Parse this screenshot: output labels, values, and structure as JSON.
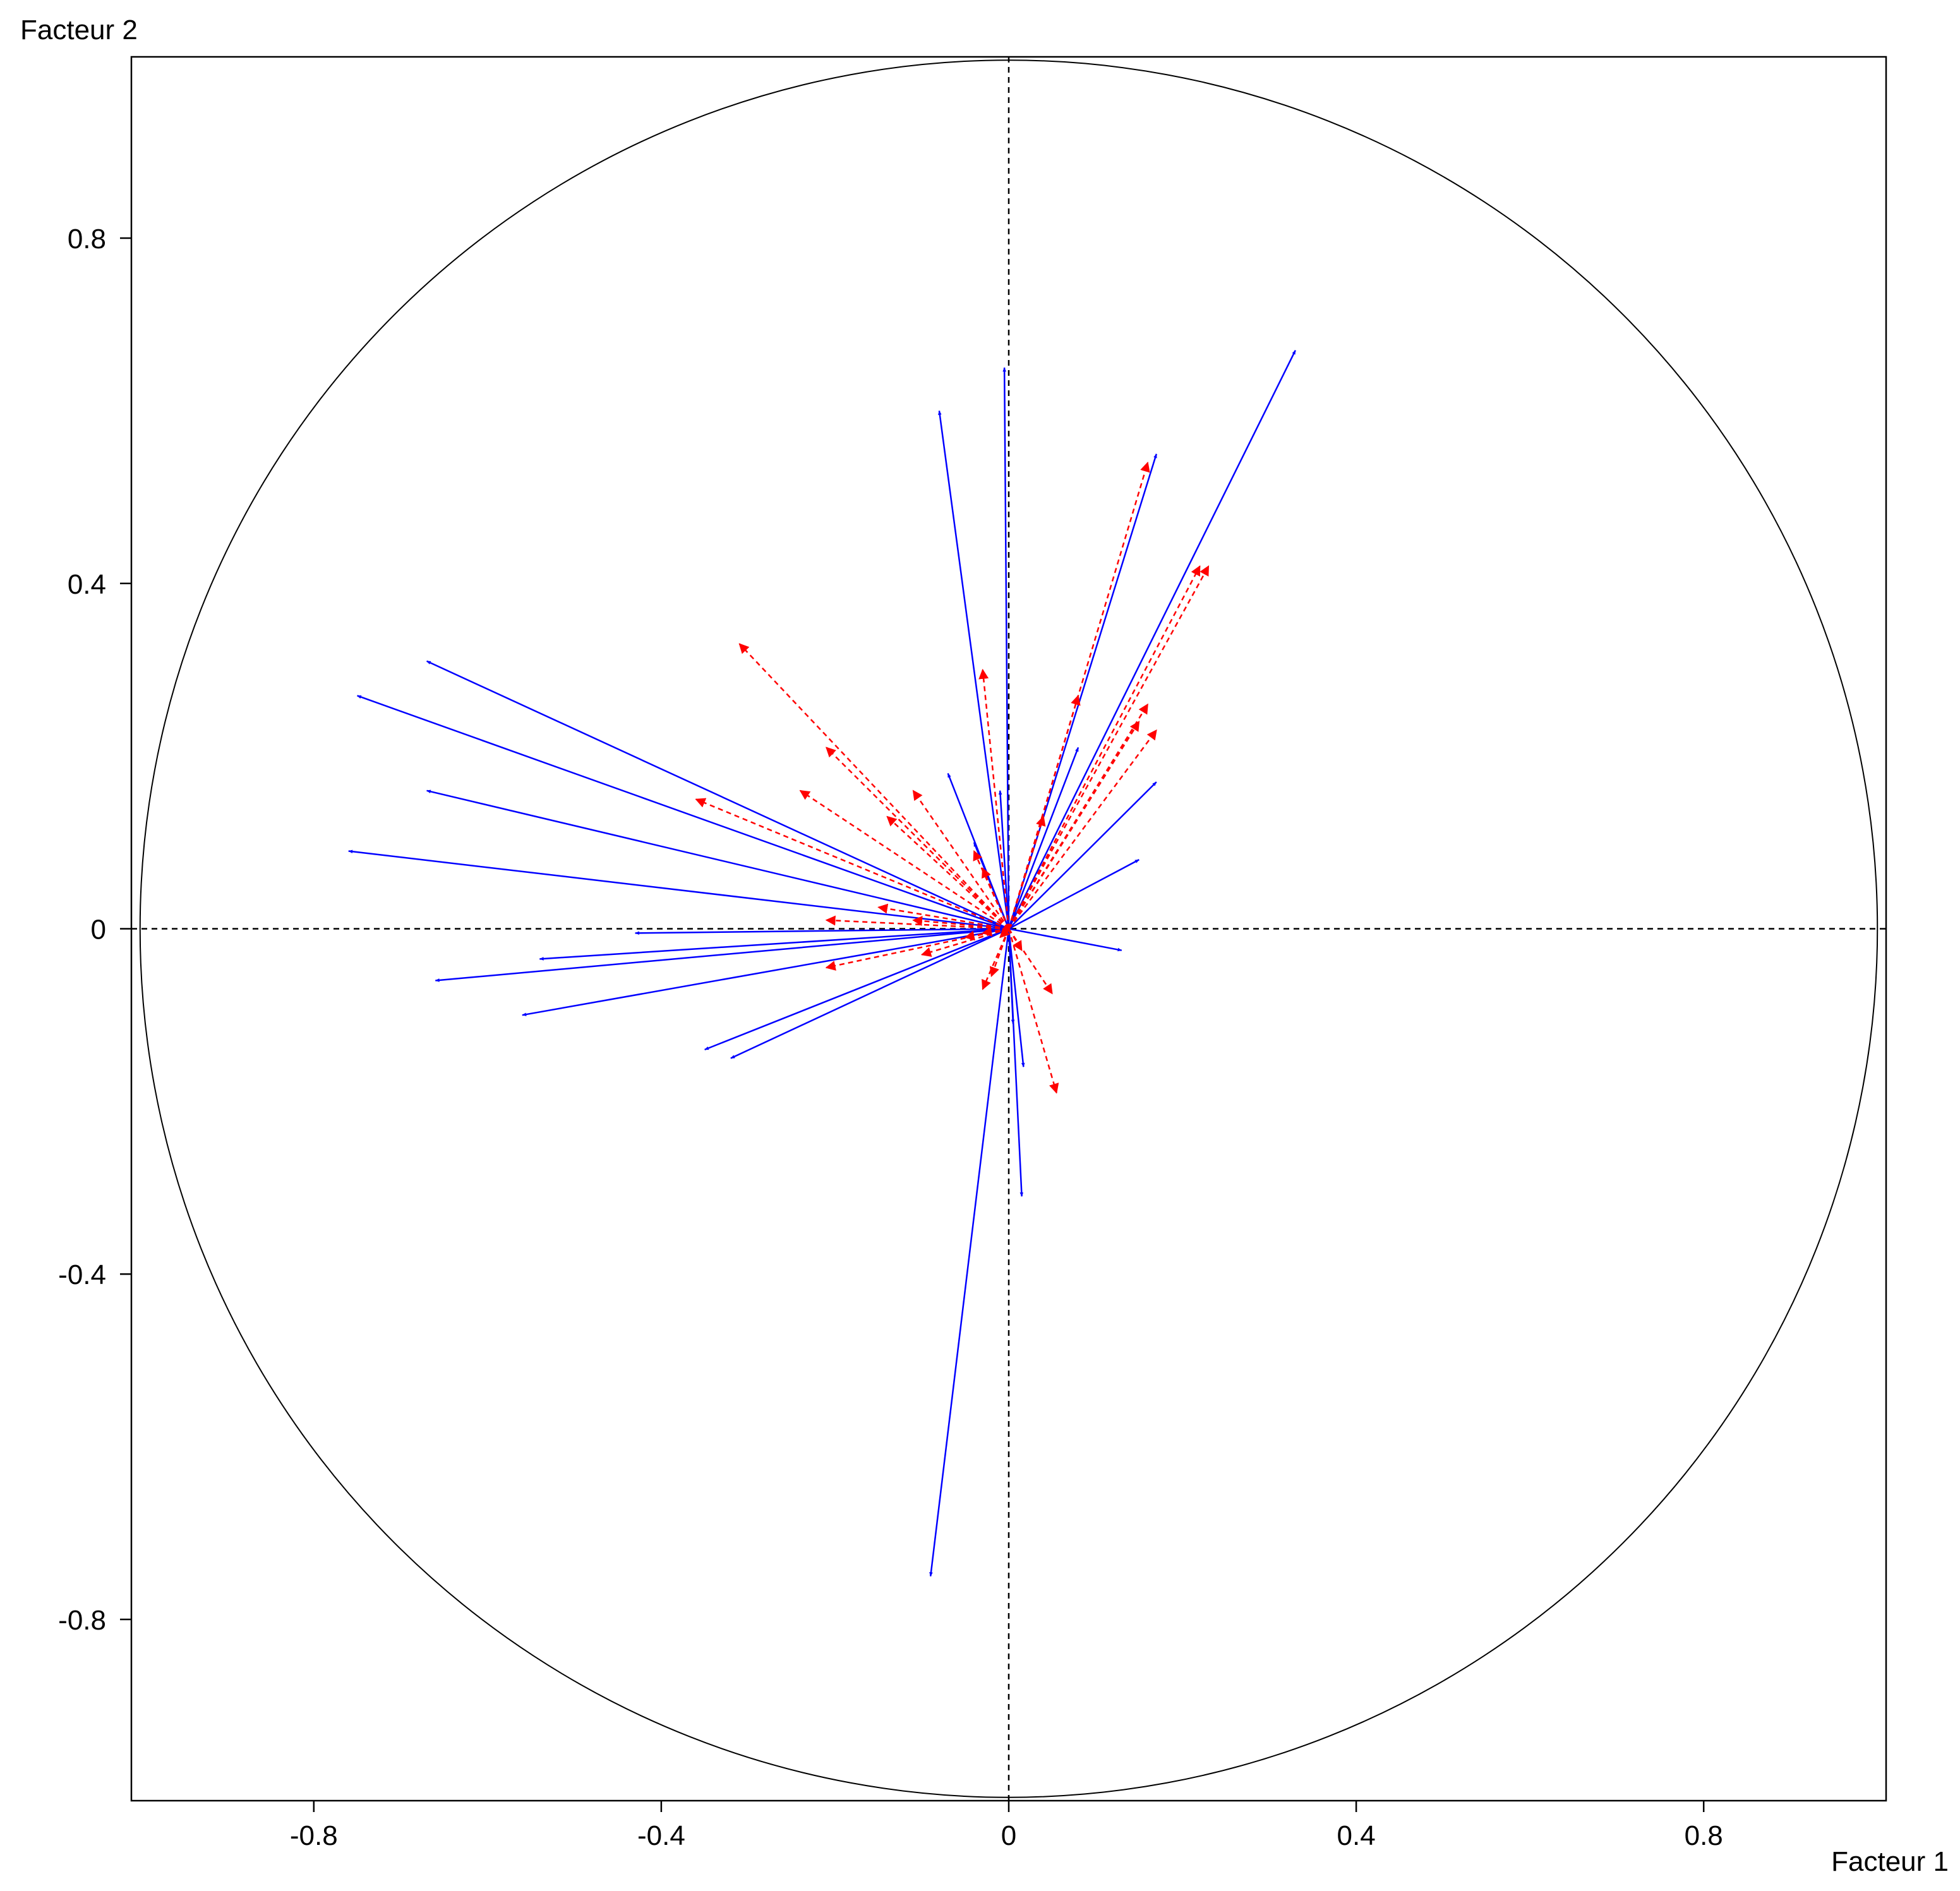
{
  "chart_data": {
    "type": "scatter",
    "subtype": "correlation-circle",
    "title": "",
    "xlabel": "Facteur 1",
    "ylabel": "Facteur 2",
    "xlim": [
      -1.01,
      1.01
    ],
    "ylim": [
      -1.01,
      1.01
    ],
    "x_ticks": [
      -0.8,
      -0.4,
      0,
      0.4,
      0.8
    ],
    "y_ticks": [
      0.8,
      0.4,
      0,
      -0.4,
      -0.8
    ],
    "x_tick_labels": [
      "-0.8",
      "-0.4",
      "0",
      "0.4",
      "0.8"
    ],
    "y_tick_labels": [
      "0.8",
      "0.4",
      "0",
      "-0.4",
      "-0.8"
    ],
    "unit_circle": true,
    "zero_lines": "dashed",
    "grid": false,
    "legend": "none",
    "series": [
      {
        "style": "solid",
        "color": "#0000ff",
        "points": [
          [
            0.33,
            0.67
          ],
          [
            0.17,
            0.55
          ],
          [
            -0.08,
            0.6
          ],
          [
            -0.005,
            0.65
          ],
          [
            -0.67,
            0.31
          ],
          [
            -0.75,
            0.27
          ],
          [
            -0.67,
            0.16
          ],
          [
            -0.76,
            0.09
          ],
          [
            -0.43,
            -0.005
          ],
          [
            -0.54,
            -0.035
          ],
          [
            -0.66,
            -0.06
          ],
          [
            -0.56,
            -0.1
          ],
          [
            -0.35,
            -0.14
          ],
          [
            -0.32,
            -0.15
          ],
          [
            -0.09,
            -0.75
          ],
          [
            0.015,
            -0.31
          ],
          [
            0.017,
            -0.16
          ],
          [
            0.005,
            -0.11
          ],
          [
            0.13,
            -0.025
          ],
          [
            0.15,
            0.08
          ],
          [
            0.17,
            0.17
          ],
          [
            0.08,
            0.21
          ],
          [
            -0.07,
            0.18
          ],
          [
            -0.01,
            0.16
          ],
          [
            -0.04,
            0.1
          ]
        ]
      },
      {
        "style": "dashed",
        "color": "#ff0000",
        "points": [
          [
            0.16,
            0.54
          ],
          [
            0.23,
            0.42
          ],
          [
            0.22,
            0.42
          ],
          [
            0.08,
            0.27
          ],
          [
            0.16,
            0.26
          ],
          [
            0.17,
            0.23
          ],
          [
            0.15,
            0.24
          ],
          [
            0.04,
            0.13
          ],
          [
            -0.03,
            0.3
          ],
          [
            -0.31,
            0.33
          ],
          [
            -0.21,
            0.21
          ],
          [
            -0.24,
            0.16
          ],
          [
            -0.36,
            0.15
          ],
          [
            -0.11,
            0.16
          ],
          [
            -0.14,
            0.13
          ],
          [
            -0.04,
            0.09
          ],
          [
            -0.03,
            0.07
          ],
          [
            -0.15,
            0.025
          ],
          [
            -0.21,
            0.01
          ],
          [
            -0.11,
            0.01
          ],
          [
            -0.21,
            -0.045
          ],
          [
            -0.1,
            -0.03
          ],
          [
            -0.05,
            -0.01
          ],
          [
            -0.03,
            -0.005
          ],
          [
            -0.03,
            -0.07
          ],
          [
            -0.02,
            -0.055
          ],
          [
            0.05,
            -0.075
          ],
          [
            0.055,
            -0.19
          ],
          [
            0.015,
            -0.025
          ],
          [
            -0.01,
            -0.01
          ]
        ]
      }
    ]
  }
}
